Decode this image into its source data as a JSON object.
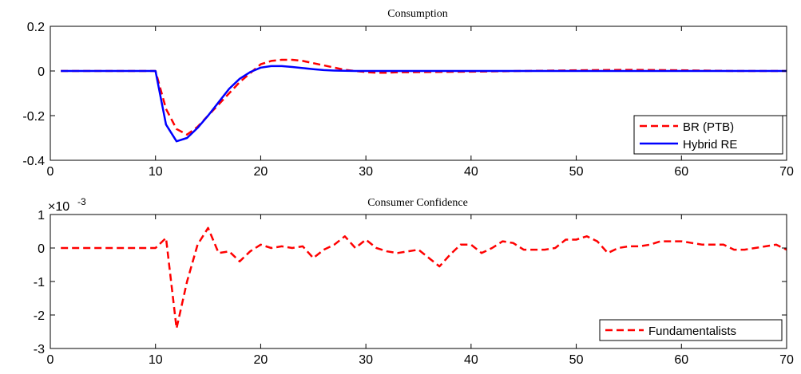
{
  "chart_data": [
    {
      "type": "line",
      "title": "Consumption",
      "xlabel": "",
      "ylabel": "",
      "xlim": [
        0,
        70
      ],
      "ylim": [
        -0.4,
        0.2
      ],
      "xticks": [
        "0",
        "10",
        "20",
        "30",
        "40",
        "50",
        "60",
        "70"
      ],
      "yticks": [
        "0.2",
        "0",
        "-0.2",
        "-0.4"
      ],
      "grid": false,
      "legend_position": "bottom-right",
      "series": [
        {
          "name": "BR (PTB)",
          "color": "#ff0000",
          "style": "dashed",
          "x": [
            1,
            10,
            11,
            12,
            13,
            14,
            15,
            16,
            17,
            18,
            19,
            20,
            21,
            22,
            23,
            24,
            25,
            26,
            27,
            28,
            29,
            30,
            31,
            32,
            33,
            35,
            40,
            45,
            50,
            55,
            60,
            65,
            70
          ],
          "y": [
            0,
            0,
            -0.17,
            -0.26,
            -0.285,
            -0.25,
            -0.2,
            -0.15,
            -0.1,
            -0.05,
            -0.01,
            0.03,
            0.045,
            0.05,
            0.05,
            0.045,
            0.035,
            0.025,
            0.015,
            0.005,
            0,
            -0.005,
            -0.008,
            -0.008,
            -0.006,
            -0.005,
            -0.003,
            0,
            0.003,
            0.005,
            0.003,
            0,
            0
          ]
        },
        {
          "name": "Hybrid RE",
          "color": "#0000ff",
          "style": "solid",
          "x": [
            1,
            10,
            11,
            12,
            13,
            14,
            15,
            16,
            17,
            18,
            19,
            20,
            21,
            22,
            23,
            24,
            25,
            26,
            27,
            28,
            29,
            30,
            35,
            40,
            50,
            60,
            70
          ],
          "y": [
            0,
            0,
            -0.24,
            -0.315,
            -0.3,
            -0.255,
            -0.2,
            -0.14,
            -0.08,
            -0.035,
            -0.005,
            0.015,
            0.022,
            0.022,
            0.018,
            0.013,
            0.008,
            0.004,
            0.002,
            0.001,
            0,
            0,
            0,
            0,
            0,
            0,
            0
          ]
        }
      ]
    },
    {
      "type": "line",
      "title": "Consumer Confidence",
      "xlabel": "",
      "ylabel": "",
      "xlim": [
        0,
        70
      ],
      "ylim": [
        -3,
        1
      ],
      "multiplier": "×10",
      "multiplier_exponent": "-3",
      "xticks": [
        "0",
        "10",
        "20",
        "30",
        "40",
        "50",
        "60",
        "70"
      ],
      "yticks": [
        "1",
        "0",
        "-1",
        "-2",
        "-3"
      ],
      "grid": false,
      "legend_position": "bottom-right",
      "series": [
        {
          "name": "Fundamentalists",
          "color": "#ff0000",
          "style": "dashed",
          "x": [
            1,
            2,
            3,
            4,
            5,
            6,
            7,
            8,
            9,
            10,
            11,
            12,
            13,
            14,
            15,
            16,
            17,
            18,
            19,
            20,
            21,
            22,
            23,
            24,
            25,
            26,
            27,
            28,
            29,
            30,
            31,
            32,
            33,
            34,
            35,
            36,
            37,
            38,
            39,
            40,
            41,
            42,
            43,
            44,
            45,
            46,
            47,
            48,
            49,
            50,
            51,
            52,
            53,
            54,
            55,
            56,
            57,
            58,
            59,
            60,
            61,
            62,
            63,
            64,
            65,
            66,
            67,
            68,
            69,
            70
          ],
          "y": [
            0,
            0,
            0,
            0,
            0,
            0,
            0,
            0,
            0,
            0,
            0.3,
            -2.4,
            -1.0,
            0.1,
            0.6,
            -0.15,
            -0.1,
            -0.4,
            -0.1,
            0.1,
            0,
            0.05,
            0,
            0.05,
            -0.3,
            -0.05,
            0.1,
            0.35,
            0,
            0.25,
            0,
            -0.1,
            -0.15,
            -0.1,
            -0.05,
            -0.3,
            -0.55,
            -0.2,
            0.1,
            0.1,
            -0.15,
            0,
            0.2,
            0.15,
            -0.05,
            -0.05,
            -0.05,
            0,
            0.25,
            0.25,
            0.35,
            0.2,
            -0.15,
            0,
            0.05,
            0.05,
            0.1,
            0.2,
            0.2,
            0.2,
            0.15,
            0.1,
            0.1,
            0.1,
            -0.05,
            -0.05,
            0,
            0.05,
            0.1,
            -0.05
          ]
        }
      ]
    }
  ]
}
